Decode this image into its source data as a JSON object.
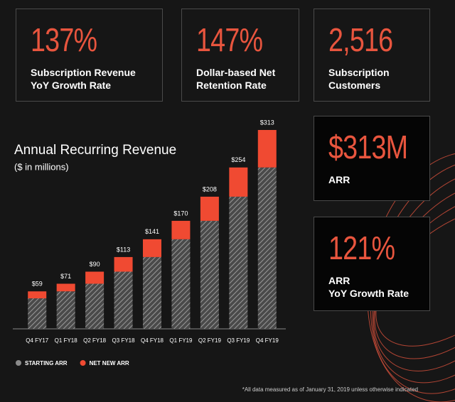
{
  "kpis": [
    {
      "value": "137%",
      "label": [
        "Subscription Revenue",
        "YoY Growth Rate"
      ]
    },
    {
      "value": "147%",
      "label": [
        "Dollar-based Net",
        "Retention Rate"
      ]
    },
    {
      "value": "2,516",
      "label": [
        "Subscription",
        "Customers"
      ]
    },
    {
      "value": "$313M",
      "label": [
        "ARR"
      ]
    },
    {
      "value": "121%",
      "label": [
        "ARR",
        "YoY Growth Rate"
      ]
    }
  ],
  "chart_data": {
    "type": "stacked_bar",
    "title": "Annual Recurring Revenue",
    "subtitle": "($ in millions)",
    "categories": [
      "Q4 FY17",
      "Q1 FY18",
      "Q2 FY18",
      "Q3 FY18",
      "Q4 FY18",
      "Q1 FY19",
      "Q2 FY19",
      "Q3 FY19",
      "Q4 FY19"
    ],
    "series": [
      {
        "name": "STARTING ARR",
        "color": "#8a8a8a",
        "pattern": "hatch",
        "values": [
          48,
          59,
          71,
          90,
          113,
          141,
          170,
          208,
          254
        ]
      },
      {
        "name": "NET NEW ARR",
        "color": "#f04a32",
        "values": [
          11,
          12,
          19,
          23,
          28,
          29,
          38,
          46,
          59
        ]
      }
    ],
    "totals": [
      59,
      71,
      90,
      113,
      141,
      170,
      208,
      254,
      313
    ],
    "total_labels": [
      "$59",
      "$71",
      "$90",
      "$113",
      "$141",
      "$170",
      "$208",
      "$254",
      "$313"
    ]
  },
  "footnote": "*All data measured as of January 31, 2019 unless otherwise indicated"
}
